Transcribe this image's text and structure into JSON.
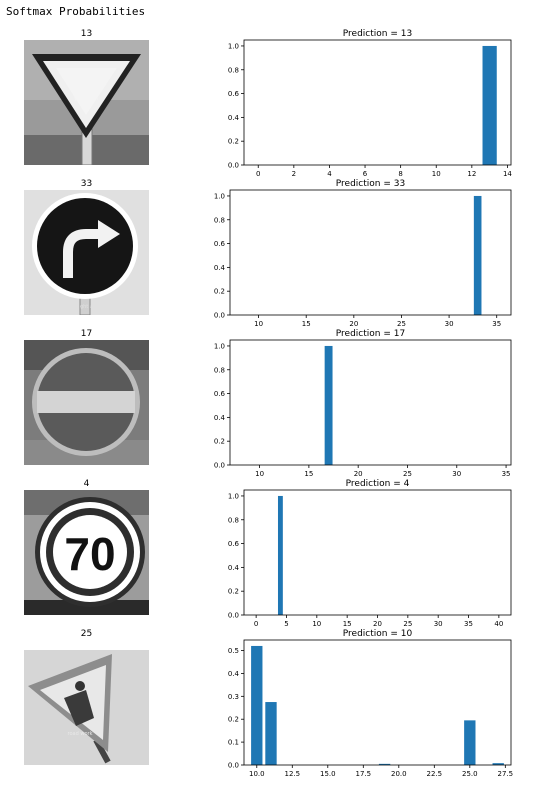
{
  "heading": "Softmax Probabilities",
  "colors": {
    "bar": "#1f77b4"
  },
  "image_titles": [
    "13",
    "33",
    "17",
    "4",
    "25"
  ],
  "sign_content": [
    "yield sign",
    "turn right ahead",
    "no entry",
    "70",
    "road work"
  ],
  "chart_data": [
    {
      "type": "bar",
      "title": "Prediction = 13",
      "x": [
        13
      ],
      "values": [
        1.0
      ],
      "xlim": [
        -0.8,
        14.2
      ],
      "ylim": [
        0,
        1.05
      ],
      "xticks": [
        0,
        2,
        4,
        6,
        8,
        10,
        12,
        14
      ],
      "xtick_labels": [
        "0",
        "2",
        "4",
        "6",
        "8",
        "10",
        "12",
        "14"
      ],
      "yticks": [
        0,
        0.2,
        0.4,
        0.6,
        0.8,
        1.0
      ],
      "ytick_labels": [
        "0.0",
        "0.2",
        "0.4",
        "0.6",
        "0.8",
        "1.0"
      ]
    },
    {
      "type": "bar",
      "title": "Prediction = 33",
      "x": [
        33
      ],
      "values": [
        1.0
      ],
      "xlim": [
        7,
        36.5
      ],
      "ylim": [
        0,
        1.05
      ],
      "xticks": [
        10,
        15,
        20,
        25,
        30,
        35
      ],
      "xtick_labels": [
        "10",
        "15",
        "20",
        "25",
        "30",
        "35"
      ],
      "yticks": [
        0,
        0.2,
        0.4,
        0.6,
        0.8,
        1.0
      ],
      "ytick_labels": [
        "0.0",
        "0.2",
        "0.4",
        "0.6",
        "0.8",
        "1.0"
      ]
    },
    {
      "type": "bar",
      "title": "Prediction = 17",
      "x": [
        17
      ],
      "values": [
        1.0
      ],
      "xlim": [
        7,
        35.5
      ],
      "ylim": [
        0,
        1.05
      ],
      "xticks": [
        10,
        15,
        20,
        25,
        30,
        35
      ],
      "xtick_labels": [
        "10",
        "15",
        "20",
        "25",
        "30",
        "35"
      ],
      "yticks": [
        0,
        0.2,
        0.4,
        0.6,
        0.8,
        1.0
      ],
      "ytick_labels": [
        "0.0",
        "0.2",
        "0.4",
        "0.6",
        "0.8",
        "1.0"
      ]
    },
    {
      "type": "bar",
      "title": "Prediction = 4",
      "x": [
        4
      ],
      "values": [
        1.0
      ],
      "xlim": [
        -2,
        42
      ],
      "ylim": [
        0,
        1.05
      ],
      "xticks": [
        0,
        5,
        10,
        15,
        20,
        25,
        30,
        35,
        40
      ],
      "xtick_labels": [
        "0",
        "5",
        "10",
        "15",
        "20",
        "25",
        "30",
        "35",
        "40"
      ],
      "yticks": [
        0,
        0.2,
        0.4,
        0.6,
        0.8,
        1.0
      ],
      "ytick_labels": [
        "0.0",
        "0.2",
        "0.4",
        "0.6",
        "0.8",
        "1.0"
      ]
    },
    {
      "type": "bar",
      "title": "Prediction = 10",
      "x": [
        10,
        11,
        19,
        25,
        27
      ],
      "values": [
        0.52,
        0.275,
        0.005,
        0.195,
        0.008
      ],
      "xlim": [
        9.1,
        27.9
      ],
      "ylim": [
        0,
        0.546
      ],
      "xticks": [
        10,
        12.5,
        15,
        17.5,
        20,
        22.5,
        25,
        27.5
      ],
      "xtick_labels": [
        "10.0",
        "12.5",
        "15.0",
        "17.5",
        "20.0",
        "22.5",
        "25.0",
        "27.5"
      ],
      "yticks": [
        0,
        0.1,
        0.2,
        0.3,
        0.4,
        0.5
      ],
      "ytick_labels": [
        "0.0",
        "0.1",
        "0.2",
        "0.3",
        "0.4",
        "0.5"
      ]
    }
  ]
}
